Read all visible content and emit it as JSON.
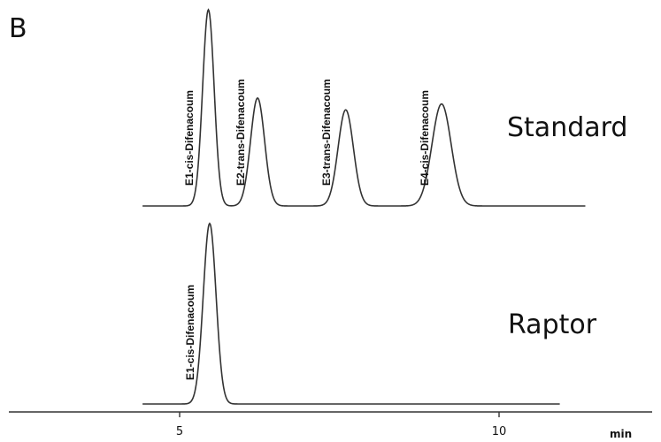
{
  "chart_data": {
    "type": "line",
    "panel_label": "B",
    "title": "",
    "xlabel": "min",
    "ylabel": "",
    "xlim": [
      4.4,
      11.5
    ],
    "x_ticks": [
      5,
      10
    ],
    "x_tick_labels": [
      "5",
      "10"
    ],
    "grid": false,
    "legend": "none",
    "series": [
      {
        "name": "Standard",
        "x_start": 4.42,
        "x_end": 11.35,
        "peaks": [
          {
            "label": "E1-cis-Difenacoum",
            "rt": 5.45,
            "height": 1.0,
            "width": 0.09
          },
          {
            "label": "E2-trans-Difenacoum",
            "rt": 6.22,
            "height": 0.55,
            "width": 0.11
          },
          {
            "label": "E3-trans-Difenacoum",
            "rt": 7.6,
            "height": 0.49,
            "width": 0.12
          },
          {
            "label": "E4-cis-Difenacoum",
            "rt": 9.1,
            "height": 0.52,
            "width": 0.15
          }
        ]
      },
      {
        "name": "Raptor",
        "x_start": 4.42,
        "x_end": 10.95,
        "peaks": [
          {
            "label": "E1-cis-Difenacoum",
            "rt": 5.47,
            "height": 0.92,
            "width": 0.1
          }
        ]
      }
    ]
  }
}
